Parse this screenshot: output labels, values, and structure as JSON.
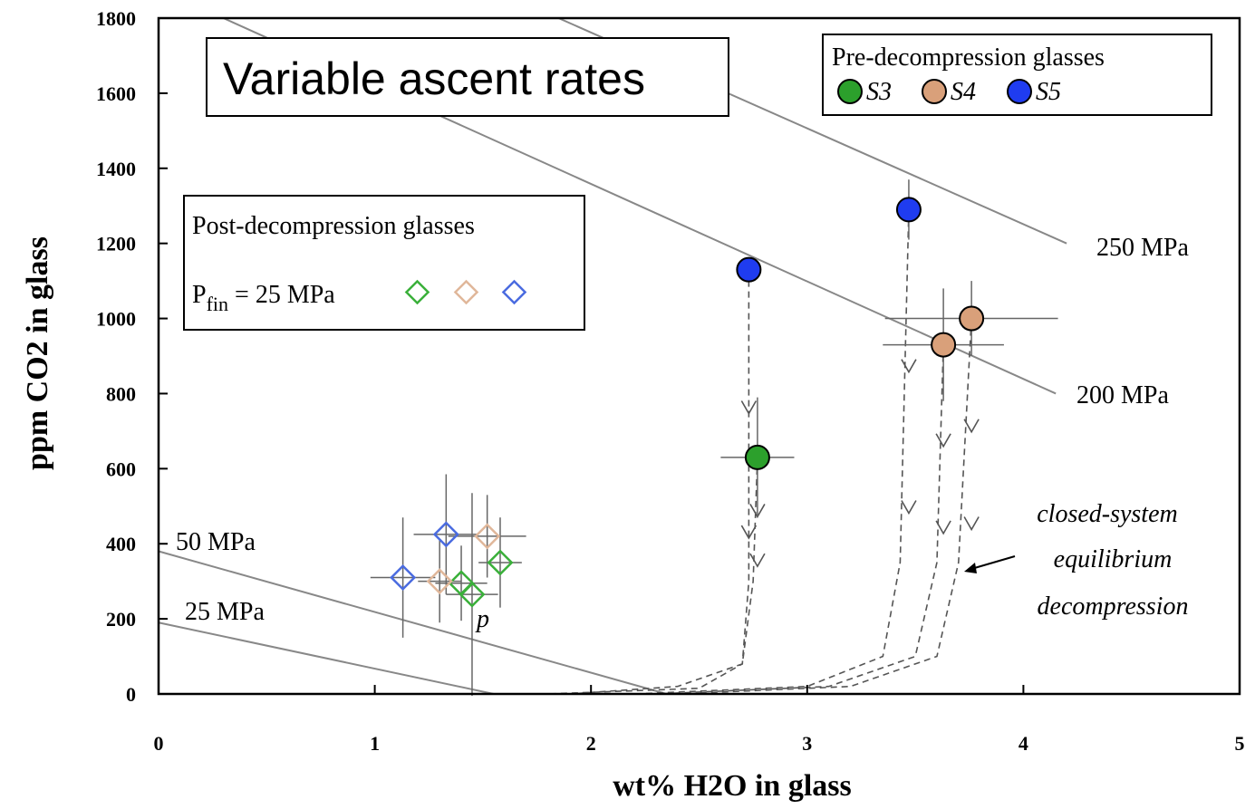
{
  "chart_data": {
    "type": "scatter",
    "title": "Variable ascent rates",
    "xlabel": "wt% H2O in glass",
    "ylabel": "ppm CO2 in glass",
    "xlim": [
      0,
      5
    ],
    "ylim": [
      0,
      1800
    ],
    "xticks": [
      "0",
      "1",
      "2",
      "3",
      "4",
      "5"
    ],
    "yticks": [
      "0",
      "200",
      "400",
      "600",
      "800",
      "1000",
      "1200",
      "1400",
      "1600",
      "1800"
    ],
    "grid": false,
    "isobars": [
      {
        "label": "250 MPa",
        "points": [
          [
            1.85,
            1800
          ],
          [
            4.2,
            1200
          ]
        ]
      },
      {
        "label": "200 MPa",
        "points": [
          [
            0.3,
            1800
          ],
          [
            4.15,
            800
          ]
        ]
      },
      {
        "label": "50 MPa",
        "points": [
          [
            0,
            380
          ],
          [
            2.35,
            0
          ]
        ]
      },
      {
        "label": "25 MPa",
        "points": [
          [
            0,
            190
          ],
          [
            1.55,
            0
          ]
        ]
      }
    ],
    "pre_decompression": {
      "legend_title": "Pre-decompression glasses",
      "series": [
        {
          "name": "S3",
          "color": "#2ca02c",
          "points": [
            {
              "x": 2.77,
              "y": 630,
              "xerr": 0.17,
              "yerr": 160
            }
          ]
        },
        {
          "name": "S4",
          "color": "#d9a07a",
          "points": [
            {
              "x": 3.63,
              "y": 930,
              "xerr": 0.28,
              "yerr": 150
            },
            {
              "x": 3.76,
              "y": 1000,
              "xerr": 0.4,
              "yerr": 100
            }
          ]
        },
        {
          "name": "S5",
          "color": "#1f3cf0",
          "points": [
            {
              "x": 2.73,
              "y": 1130,
              "xerr": 0,
              "yerr": 0
            },
            {
              "x": 3.47,
              "y": 1290,
              "xerr": 0,
              "yerr": 80
            }
          ]
        }
      ]
    },
    "post_decompression": {
      "legend_title": "Post-decompression glasses",
      "legend_label_main": "P",
      "legend_label_sub": "fin",
      "legend_label_rest": " = 25 MPa",
      "series": [
        {
          "color": "#3ab03a",
          "points": [
            {
              "x": 1.4,
              "y": 295,
              "xerr": 0.12,
              "yerr": 100
            },
            {
              "x": 1.45,
              "y": 265,
              "xerr": 0.12,
              "yerr": 270
            },
            {
              "x": 1.58,
              "y": 350,
              "xerr": 0.1,
              "yerr": 120
            }
          ]
        },
        {
          "color": "#e0b79a",
          "points": [
            {
              "x": 1.3,
              "y": 300,
              "xerr": 0.1,
              "yerr": 110
            },
            {
              "x": 1.52,
              "y": 420,
              "xerr": 0.18,
              "yerr": 110
            }
          ]
        },
        {
          "color": "#4a6be0",
          "points": [
            {
              "x": 1.13,
              "y": 310,
              "xerr": 0.15,
              "yerr": 160
            },
            {
              "x": 1.33,
              "y": 425,
              "xerr": 0.15,
              "yerr": 160
            }
          ]
        }
      ]
    },
    "decompression_paths": [
      {
        "from": [
          2.73,
          1130
        ],
        "points": [
          [
            2.73,
            1130
          ],
          [
            2.73,
            300
          ],
          [
            2.7,
            80
          ],
          [
            2.5,
            15
          ],
          [
            1.8,
            0
          ]
        ]
      },
      {
        "from": [
          2.77,
          630
        ],
        "points": [
          [
            2.77,
            630
          ],
          [
            2.75,
            300
          ],
          [
            2.7,
            80
          ],
          [
            2.4,
            20
          ],
          [
            1.9,
            0
          ]
        ]
      },
      {
        "from": [
          3.47,
          1290
        ],
        "points": [
          [
            3.47,
            1290
          ],
          [
            3.43,
            350
          ],
          [
            3.35,
            100
          ],
          [
            3.0,
            20
          ],
          [
            2.2,
            0
          ]
        ]
      },
      {
        "from": [
          3.63,
          930
        ],
        "points": [
          [
            3.63,
            930
          ],
          [
            3.6,
            350
          ],
          [
            3.5,
            100
          ],
          [
            3.1,
            20
          ],
          [
            2.3,
            0
          ]
        ]
      },
      {
        "from": [
          3.76,
          1000
        ],
        "points": [
          [
            3.76,
            1000
          ],
          [
            3.7,
            350
          ],
          [
            3.6,
            100
          ],
          [
            3.2,
            20
          ],
          [
            2.4,
            0
          ]
        ]
      }
    ],
    "annotations": {
      "closed_line1": "closed-system",
      "closed_line2": "equilibrium",
      "closed_line3": "decompression",
      "point_label": "p"
    }
  }
}
